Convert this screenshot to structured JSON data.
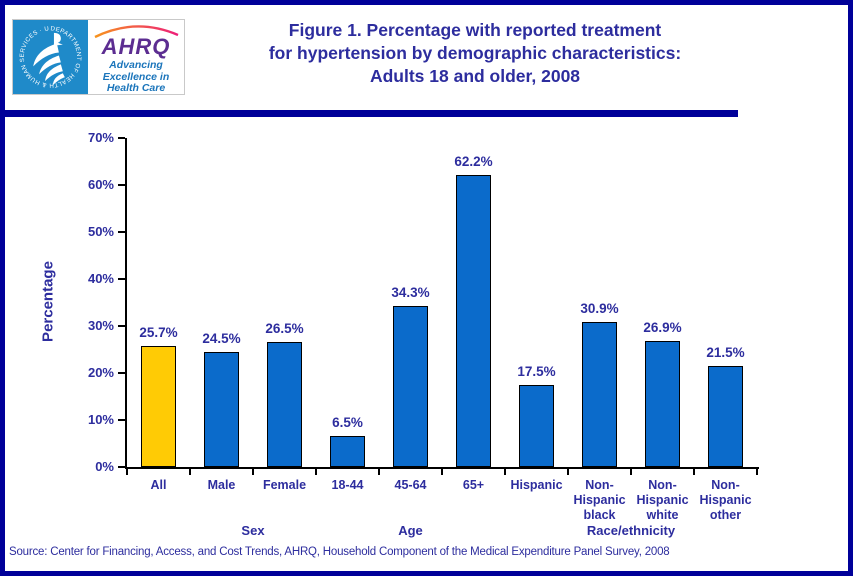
{
  "header": {
    "title_lines": [
      "Figure 1. Percentage with reported treatment",
      "for hypertension by demographic characteristics:",
      "Adults 18 and older, 2008"
    ],
    "logo": {
      "hhs_seal_text": "DEPARTMENT OF HEALTH & HUMAN SERVICES · USA",
      "ahrq_text": "AHRQ",
      "tagline_lines": [
        "Advancing",
        "Excellence in",
        "Health Care"
      ]
    }
  },
  "chart_data": {
    "type": "bar",
    "title": "Figure 1. Percentage with reported treatment for hypertension by demographic characteristics: Adults 18 and older, 2008",
    "xlabel": "",
    "ylabel": "Percentage",
    "ylim": [
      0,
      70
    ],
    "ytick_step": 10,
    "ytick_labels": [
      "0%",
      "10%",
      "20%",
      "30%",
      "40%",
      "50%",
      "60%",
      "70%"
    ],
    "grid": false,
    "legend": null,
    "categories": [
      "All",
      "Male",
      "Female",
      "18-44",
      "45-64",
      "65+",
      "Hispanic",
      "Non-\nHispanic\nblack",
      "Non-\nHispanic\nwhite",
      "Non-\nHispanic\nother"
    ],
    "values": [
      25.7,
      24.5,
      26.5,
      6.5,
      34.3,
      62.2,
      17.5,
      30.9,
      26.9,
      21.5
    ],
    "value_labels": [
      "25.7%",
      "24.5%",
      "26.5%",
      "6.5%",
      "34.3%",
      "62.2%",
      "17.5%",
      "30.9%",
      "26.9%",
      "21.5%"
    ],
    "bar_colors": [
      "#FFCB05",
      "#0B6BCB",
      "#0B6BCB",
      "#0B6BCB",
      "#0B6BCB",
      "#0B6BCB",
      "#0B6BCB",
      "#0B6BCB",
      "#0B6BCB",
      "#0B6BCB"
    ],
    "groups": [
      {
        "label": "Sex",
        "start": 1,
        "end": 2
      },
      {
        "label": "Age",
        "start": 3,
        "end": 5
      },
      {
        "label": "Race/ethnicity",
        "start": 6,
        "end": 9
      }
    ]
  },
  "footer": {
    "source": "Source: Center for Financing, Access, and Cost Trends, AHRQ, Household Component of the Medical Expenditure Panel Survey, 2008"
  },
  "colors": {
    "page_border_navy": "#000099",
    "text_navy": "#2D2D9E",
    "bar_blue": "#0B6BCB",
    "bar_gold": "#FFCB05",
    "hhs_blue": "#1F8AC9",
    "ahrq_purple": "#5C2D91",
    "tagline_blue": "#1B75BB"
  }
}
